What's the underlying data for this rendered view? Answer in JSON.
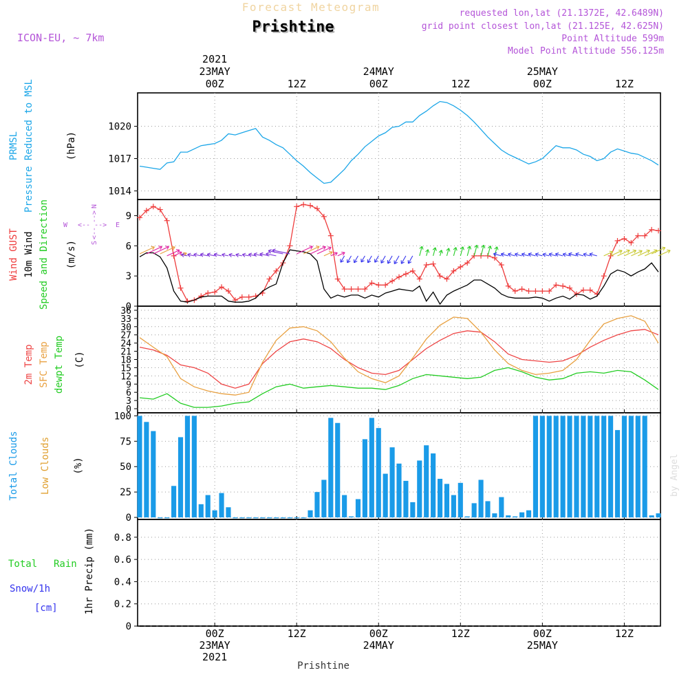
{
  "header": {
    "product": "Forecast Meteogram",
    "location": "Prishtine",
    "model": "ICON-EU, ~ 7km",
    "requested": "requested lon,lat (21.1372E, 42.6489N)",
    "gridpoint": "grid point closest lon,lat (21.125E, 42.625N)",
    "point_alt": "Point Altitude 599m",
    "model_alt": "Model Point Altitude 556.125m",
    "credit": "by Angel",
    "footer": "Prishtine"
  },
  "colors": {
    "pressure": "#1ba6e8",
    "gust": "#ee3b3b",
    "wind": "#000000",
    "t2m": "#ee4444",
    "sfc": "#e8a040",
    "dewpt": "#22cc22",
    "clouds": "#1a9be8",
    "low": "#e0a030",
    "rain": "#22cc22",
    "snow": "#3333ee",
    "purple": "#b455d8"
  },
  "time_axis": {
    "top_ticks": [
      {
        "hour": 0,
        "lines": [
          "2021",
          "23MAY",
          "00Z"
        ]
      },
      {
        "hour": 12,
        "lines": [
          "12Z"
        ]
      },
      {
        "hour": 24,
        "lines": [
          "24MAY",
          "00Z"
        ]
      },
      {
        "hour": 36,
        "lines": [
          "12Z"
        ]
      },
      {
        "hour": 48,
        "lines": [
          "25MAY",
          "00Z"
        ]
      },
      {
        "hour": 60,
        "lines": [
          "12Z"
        ]
      }
    ],
    "bottom_ticks": [
      {
        "hour": 0,
        "lines": [
          "00Z",
          "23MAY",
          "2021"
        ]
      },
      {
        "hour": 12,
        "lines": [
          "12Z"
        ]
      },
      {
        "hour": 24,
        "lines": [
          "00Z",
          "24MAY"
        ]
      },
      {
        "hour": 36,
        "lines": [
          "12Z"
        ]
      },
      {
        "hour": 48,
        "lines": [
          "00Z",
          "25MAY"
        ]
      },
      {
        "hour": 60,
        "lines": [
          "12Z"
        ]
      }
    ],
    "hour_start": -11.3,
    "hour_end": 65.3
  },
  "chart_data": [
    {
      "type": "line",
      "panel": "pressure",
      "labels": [
        "PRMSL",
        "Pressure Reduced to MSL",
        "(hPa)"
      ],
      "y_ticks": [
        1014,
        1017,
        1020
      ],
      "ylim": [
        1013.2,
        1023.1
      ],
      "series": [
        {
          "name": "PRMSL",
          "x": [
            -11,
            -10,
            -9,
            -8,
            -7,
            -6,
            -5,
            -4,
            -3,
            -2,
            -1,
            0,
            1,
            2,
            3,
            4,
            5,
            6,
            7,
            8,
            9,
            10,
            11,
            12,
            13,
            14,
            15,
            16,
            17,
            18,
            19,
            20,
            21,
            22,
            23,
            24,
            25,
            26,
            27,
            28,
            29,
            30,
            31,
            32,
            33,
            34,
            35,
            36,
            37,
            38,
            39,
            40,
            41,
            42,
            43,
            44,
            45,
            46,
            47,
            48,
            49,
            50,
            51,
            52,
            53,
            54,
            55,
            56,
            57,
            58,
            59,
            60,
            61,
            62,
            63,
            64,
            65
          ],
          "values": [
            1016.3,
            1016.2,
            1016.1,
            1016.0,
            1016.6,
            1016.7,
            1017.6,
            1017.6,
            1017.9,
            1018.2,
            1018.3,
            1018.4,
            1018.7,
            1019.3,
            1019.2,
            1019.4,
            1019.6,
            1019.8,
            1019.0,
            1018.7,
            1018.3,
            1018.0,
            1017.4,
            1016.8,
            1016.3,
            1015.7,
            1015.2,
            1014.7,
            1014.8,
            1015.4,
            1016.0,
            1016.8,
            1017.4,
            1018.1,
            1018.6,
            1019.1,
            1019.4,
            1019.9,
            1020.0,
            1020.4,
            1020.4,
            1021.0,
            1021.4,
            1021.9,
            1022.3,
            1022.2,
            1021.9,
            1021.5,
            1021.0,
            1020.4,
            1019.7,
            1019.0,
            1018.4,
            1017.8,
            1017.4,
            1017.1,
            1016.8,
            1016.5,
            1016.7,
            1017.0,
            1017.6,
            1018.2,
            1018.0,
            1018.0,
            1017.8,
            1017.4,
            1017.2,
            1016.8,
            1017.0,
            1017.6,
            1017.9,
            1017.7,
            1017.5,
            1017.4,
            1017.1,
            1016.8,
            1016.4
          ]
        }
      ]
    },
    {
      "type": "line",
      "panel": "wind",
      "labels": [
        "Wind GUST",
        "10m Wind",
        "Speed and Direction",
        "(m/s)"
      ],
      "compass": {
        "n": "N",
        "s": "S",
        "e": "E",
        "w": "W"
      },
      "y_ticks": [
        0,
        3,
        6,
        9
      ],
      "ylim": [
        0,
        10.6
      ],
      "series": [
        {
          "name": "Wind GUST",
          "x": [
            -11,
            -10,
            -9,
            -8,
            -7,
            -6,
            -5,
            -4,
            -3,
            -2,
            -1,
            0,
            1,
            2,
            3,
            4,
            5,
            6,
            7,
            8,
            9,
            10,
            11,
            12,
            13,
            14,
            15,
            16,
            17,
            18,
            19,
            20,
            21,
            22,
            23,
            24,
            25,
            26,
            27,
            28,
            29,
            30,
            31,
            32,
            33,
            34,
            35,
            36,
            37,
            38,
            39,
            40,
            41,
            42,
            43,
            44,
            45,
            46,
            47,
            48,
            49,
            50,
            51,
            52,
            53,
            54,
            55,
            56,
            57,
            58,
            59,
            60,
            61,
            62,
            63,
            64,
            65
          ],
          "values": [
            8.8,
            9.5,
            9.9,
            9.6,
            8.5,
            5.0,
            1.8,
            0.5,
            0.6,
            1.0,
            1.3,
            1.4,
            1.9,
            1.5,
            0.6,
            0.9,
            0.9,
            1.0,
            1.3,
            2.7,
            3.5,
            4.3,
            6.0,
            9.9,
            10.1,
            10.0,
            9.7,
            8.9,
            7.0,
            2.7,
            1.7,
            1.7,
            1.7,
            1.7,
            2.3,
            2.1,
            2.1,
            2.5,
            2.9,
            3.2,
            3.5,
            2.7,
            4.1,
            4.2,
            3.0,
            2.7,
            3.5,
            3.9,
            4.3,
            5.0,
            5.0,
            5.0,
            4.8,
            4.1,
            2.0,
            1.5,
            1.7,
            1.5,
            1.5,
            1.5,
            1.5,
            2.1,
            2.0,
            1.8,
            1.2,
            1.6,
            1.6,
            1.2,
            3.0,
            5.0,
            6.5,
            6.7,
            6.3,
            7.0,
            7.0,
            7.6,
            7.5
          ]
        },
        {
          "name": "10m Wind",
          "x": [
            -11,
            -10,
            -9,
            -8,
            -7,
            -6,
            -5,
            -4,
            -3,
            -2,
            -1,
            0,
            1,
            2,
            3,
            4,
            5,
            6,
            7,
            8,
            9,
            10,
            11,
            12,
            13,
            14,
            15,
            16,
            17,
            18,
            19,
            20,
            21,
            22,
            23,
            24,
            25,
            26,
            27,
            28,
            29,
            30,
            31,
            32,
            33,
            34,
            35,
            36,
            37,
            38,
            39,
            40,
            41,
            42,
            43,
            44,
            45,
            46,
            47,
            48,
            49,
            50,
            51,
            52,
            53,
            54,
            55,
            56,
            57,
            58,
            59,
            60,
            61,
            62,
            63,
            64,
            65
          ],
          "values": [
            4.9,
            5.3,
            5.3,
            4.9,
            3.8,
            1.5,
            0.5,
            0.4,
            0.6,
            0.9,
            1.0,
            1.0,
            1.0,
            0.5,
            0.4,
            0.4,
            0.5,
            0.8,
            1.5,
            1.9,
            2.2,
            4.3,
            5.6,
            5.5,
            5.4,
            5.2,
            4.5,
            1.7,
            0.8,
            1.1,
            0.9,
            1.1,
            1.1,
            0.8,
            1.1,
            0.9,
            1.3,
            1.5,
            1.7,
            1.6,
            1.5,
            2.0,
            0.5,
            1.4,
            0.2,
            1.1,
            1.5,
            1.8,
            2.1,
            2.6,
            2.6,
            2.2,
            1.8,
            1.2,
            0.9,
            0.8,
            0.8,
            0.8,
            0.9,
            0.8,
            0.5,
            0.8,
            1.0,
            0.7,
            1.2,
            1.1,
            0.7,
            1.0,
            2.0,
            3.2,
            3.6,
            3.4,
            3.0,
            3.4,
            3.7,
            4.3,
            3.4
          ]
        }
      ]
    },
    {
      "type": "line",
      "panel": "temperature",
      "labels": [
        "2m Temp",
        "SFC Temp",
        "dewpt Temp",
        "(C)"
      ],
      "y_ticks": [
        0,
        3,
        6,
        9,
        12,
        15,
        18,
        21,
        24,
        27,
        30,
        33,
        36
      ],
      "ylim": [
        -1.5,
        37.5
      ],
      "series": [
        {
          "name": "2m Temp",
          "x": [
            -11,
            -9,
            -7,
            -5,
            -3,
            -1,
            1,
            3,
            5,
            7,
            9,
            11,
            13,
            15,
            17,
            19,
            21,
            23,
            25,
            27,
            29,
            31,
            33,
            35,
            37,
            39,
            41,
            43,
            45,
            47,
            49,
            51,
            53,
            55,
            57,
            59,
            61,
            63,
            65
          ],
          "values": [
            22.5,
            21.5,
            19.5,
            16.0,
            15.0,
            13.0,
            9.0,
            7.5,
            9.0,
            16.5,
            21.0,
            24.5,
            25.5,
            24.5,
            22.0,
            18.0,
            15.0,
            13.0,
            12.5,
            14.0,
            18.0,
            22.0,
            25.0,
            27.5,
            28.5,
            28.0,
            24.5,
            20.0,
            18.0,
            17.5,
            17.0,
            17.5,
            19.5,
            22.5,
            25.0,
            27.0,
            28.5,
            29.0,
            27.0
          ]
        },
        {
          "name": "SFC Temp",
          "x": [
            -11,
            -9,
            -7,
            -5,
            -3,
            -1,
            1,
            3,
            5,
            7,
            9,
            11,
            13,
            15,
            17,
            19,
            21,
            23,
            25,
            27,
            29,
            31,
            33,
            35,
            37,
            39,
            41,
            43,
            45,
            47,
            49,
            51,
            53,
            55,
            57,
            59,
            61,
            63,
            65
          ],
          "values": [
            26.0,
            22.5,
            19.0,
            11.0,
            8.0,
            6.5,
            5.5,
            5.0,
            6.0,
            17.0,
            25.0,
            29.5,
            30.0,
            28.5,
            24.5,
            18.5,
            13.5,
            11.0,
            9.5,
            12.0,
            18.5,
            25.5,
            30.5,
            33.5,
            33.0,
            28.0,
            21.5,
            16.5,
            14.0,
            12.5,
            13.0,
            14.0,
            18.0,
            25.0,
            31.0,
            33.0,
            34.0,
            32.0,
            24.0
          ]
        },
        {
          "name": "dewpt Temp",
          "x": [
            -11,
            -9,
            -7,
            -5,
            -3,
            -1,
            1,
            3,
            5,
            7,
            9,
            11,
            13,
            15,
            17,
            19,
            21,
            23,
            25,
            27,
            29,
            31,
            33,
            35,
            37,
            39,
            41,
            43,
            45,
            47,
            49,
            51,
            53,
            55,
            57,
            59,
            61,
            63,
            65
          ],
          "values": [
            4.0,
            3.5,
            5.5,
            2.0,
            0.5,
            0.5,
            1.0,
            2.0,
            2.5,
            5.5,
            8.0,
            9.0,
            7.5,
            8.0,
            8.5,
            8.0,
            7.5,
            7.5,
            7.0,
            8.5,
            11.0,
            12.5,
            12.0,
            11.5,
            11.0,
            11.5,
            14.0,
            15.0,
            13.5,
            11.5,
            10.5,
            11.0,
            13.0,
            13.5,
            13.0,
            14.0,
            13.5,
            10.5,
            7.0
          ]
        }
      ]
    },
    {
      "type": "bar",
      "panel": "clouds",
      "labels": [
        "Total Clouds",
        "Low Clouds",
        "(%)"
      ],
      "y_ticks": [
        0,
        25,
        50,
        75,
        100
      ],
      "ylim": [
        -2,
        103
      ],
      "series": [
        {
          "name": "Total Clouds",
          "x": [
            -11,
            -10,
            -9,
            -8,
            -7,
            -6,
            -5,
            -4,
            -3,
            -2,
            -1,
            0,
            1,
            2,
            3,
            4,
            5,
            6,
            7,
            8,
            9,
            10,
            11,
            12,
            13,
            14,
            15,
            16,
            17,
            18,
            19,
            20,
            21,
            22,
            23,
            24,
            25,
            26,
            27,
            28,
            29,
            30,
            31,
            32,
            33,
            34,
            35,
            36,
            37,
            38,
            39,
            40,
            41,
            42,
            43,
            44,
            45,
            46,
            47,
            48,
            49,
            50,
            51,
            52,
            53,
            54,
            55,
            56,
            57,
            58,
            59,
            60,
            61,
            62,
            63,
            64,
            65
          ],
          "values": [
            100,
            94,
            85,
            0,
            0,
            31,
            79,
            100,
            100,
            13,
            22,
            7,
            24,
            10,
            0,
            0,
            0,
            0,
            0,
            0,
            0,
            0,
            0,
            0,
            0,
            7,
            25,
            37,
            98,
            93,
            22,
            1,
            18,
            77,
            98,
            88,
            43,
            69,
            53,
            36,
            15,
            56,
            71,
            63,
            38,
            33,
            22,
            34,
            1,
            14,
            37,
            16,
            4,
            20,
            2,
            1,
            5,
            7,
            100,
            100,
            100,
            100,
            100,
            100,
            100,
            100,
            100,
            100,
            100,
            100,
            86,
            100,
            100,
            100,
            100,
            2,
            4
          ]
        }
      ]
    },
    {
      "type": "line",
      "panel": "precip",
      "labels": [
        "Total",
        "Rain",
        "Snow/1h",
        "[cm]",
        "1hr Precip (mm)"
      ],
      "y_ticks": [
        "0",
        "0.2",
        "0.4",
        "0.6",
        "0.8"
      ],
      "ylim": [
        0,
        0.96
      ],
      "series": [
        {
          "name": "Total Rain",
          "x": [
            -11,
            65
          ],
          "values": [
            0,
            0
          ]
        }
      ]
    }
  ]
}
